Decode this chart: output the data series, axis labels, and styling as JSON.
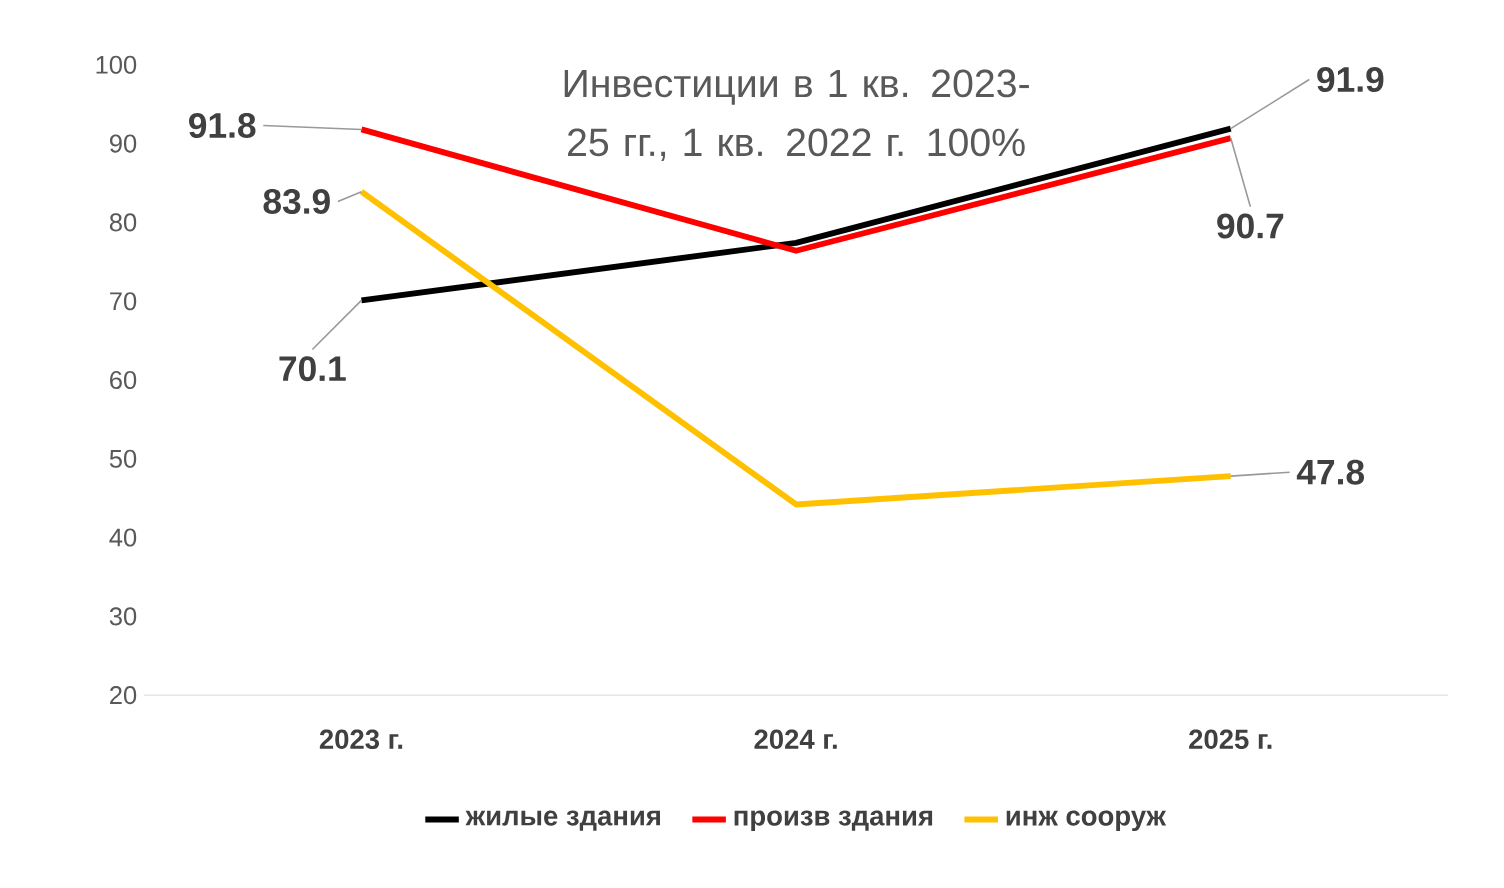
{
  "chart_data": {
    "type": "line",
    "title": "Инвестиции в 1 кв. 2023-25 гг., 1 кв. 2022 г. 100%",
    "categories": [
      "2023 г.",
      "2024 г.",
      "2025 г."
    ],
    "series": [
      {
        "name": "жилые здания",
        "color": "#000000",
        "values": [
          70.1,
          77.4,
          91.9
        ],
        "value_labels": [
          "70.1",
          null,
          "91.9"
        ]
      },
      {
        "name": "произв здания",
        "color": "#ff0000",
        "values": [
          91.8,
          76.4,
          90.7
        ],
        "value_labels": [
          "91.8",
          null,
          "90.7"
        ]
      },
      {
        "name": "инж сооруж",
        "color": "#ffc000",
        "values": [
          83.9,
          44.2,
          47.8
        ],
        "value_labels": [
          "83.9",
          null,
          "47.8"
        ]
      }
    ],
    "ylim": [
      20,
      100
    ],
    "yticks": [
      20,
      30,
      40,
      50,
      60,
      70,
      80,
      90,
      100
    ],
    "grid": false,
    "legend": "bottom",
    "marker": "none",
    "line_style": "solid"
  }
}
